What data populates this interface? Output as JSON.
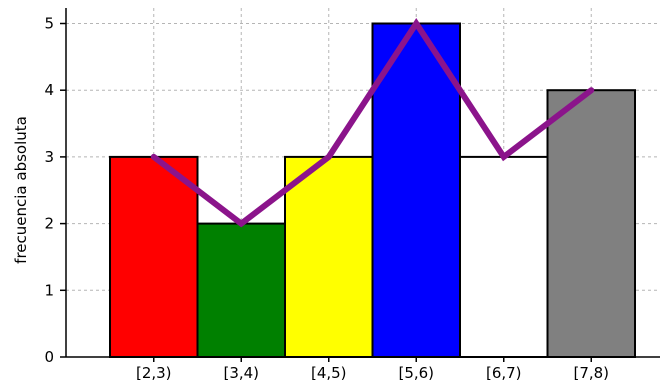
{
  "chart_data": {
    "type": "bar",
    "categories": [
      "[2,3)",
      "[3,4)",
      "[4,5)",
      "[5,6)",
      "[6,7)",
      "[7,8)"
    ],
    "values": [
      3,
      2,
      3,
      5,
      3,
      4
    ],
    "bar_colors": [
      "#ff0000",
      "#008000",
      "#ffff00",
      "#0000ff",
      "#ffffff",
      "#808080"
    ],
    "polygon": {
      "values": [
        3,
        2,
        3,
        5,
        3,
        4
      ],
      "color": "#8b148b"
    },
    "ylabel": "frecuencia absoluta",
    "xlabel": "",
    "ylim": [
      0,
      5.2
    ],
    "yticks": [
      0,
      1,
      2,
      3,
      4,
      5
    ],
    "grid": true
  }
}
